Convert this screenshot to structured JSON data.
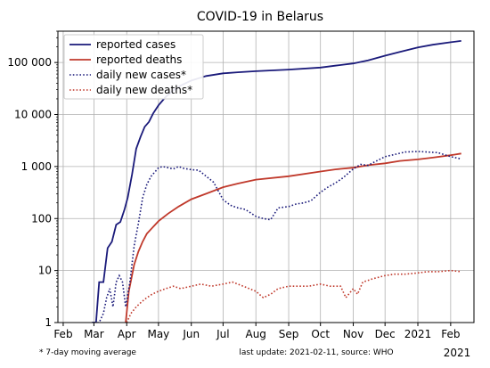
{
  "chart_data": {
    "type": "line",
    "title": "COVID-19 in Belarus",
    "xlabel": "",
    "ylabel": "",
    "yscale": "log",
    "ylim": [
      1,
      400000
    ],
    "xlim": [
      "2020-01-27",
      "2021-02-23"
    ],
    "grid": true,
    "legend_position": "top-left",
    "y_ticks": [
      1,
      10,
      100,
      1000,
      10000,
      100000
    ],
    "y_tick_labels": [
      "1",
      "10",
      "100",
      "1 000",
      "10 000",
      "100 000"
    ],
    "x_ticks": [
      "2020-02-01",
      "2020-03-01",
      "2020-04-01",
      "2020-05-01",
      "2020-06-01",
      "2020-07-01",
      "2020-08-01",
      "2020-09-01",
      "2020-10-01",
      "2020-11-01",
      "2020-12-01",
      "2021-01-01",
      "2021-02-01"
    ],
    "x_tick_labels": [
      "Feb",
      "Mar",
      "Apr",
      "May",
      "Jun",
      "Jul",
      "Aug",
      "Sep",
      "Oct",
      "Nov",
      "Dec",
      "2021",
      "Feb"
    ],
    "x_extra_label": "2021",
    "footnote_left": "* 7-day moving average",
    "footnote_right": "last update: 2021-02-11, source: WHO",
    "series": [
      {
        "name": "reported cases",
        "color": "#1a1a7a",
        "style": "solid",
        "x": [
          "2020-02-28",
          "2020-03-03",
          "2020-03-06",
          "2020-03-10",
          "2020-03-14",
          "2020-03-18",
          "2020-03-22",
          "2020-03-26",
          "2020-03-30",
          "2020-04-02",
          "2020-04-06",
          "2020-04-10",
          "2020-04-14",
          "2020-04-18",
          "2020-04-22",
          "2020-04-26",
          "2020-05-01",
          "2020-05-08",
          "2020-05-15",
          "2020-05-22",
          "2020-06-01",
          "2020-06-15",
          "2020-07-01",
          "2020-07-15",
          "2020-08-01",
          "2020-09-01",
          "2020-10-01",
          "2020-10-15",
          "2020-11-01",
          "2020-11-15",
          "2020-12-01",
          "2020-12-15",
          "2021-01-01",
          "2021-01-15",
          "2021-02-01",
          "2021-02-11"
        ],
        "y": [
          1,
          1,
          6,
          6,
          27,
          36,
          76,
          86,
          152,
          254,
          700,
          2200,
          3700,
          5800,
          7200,
          10500,
          15000,
          22000,
          29000,
          36000,
          45000,
          55000,
          62000,
          65000,
          68000,
          73000,
          80000,
          87000,
          96000,
          110000,
          135000,
          160000,
          195000,
          220000,
          245000,
          260000
        ]
      },
      {
        "name": "reported deaths",
        "color": "#c0392b",
        "style": "solid",
        "x": [
          "2020-03-31",
          "2020-04-03",
          "2020-04-08",
          "2020-04-12",
          "2020-04-16",
          "2020-04-20",
          "2020-04-25",
          "2020-05-01",
          "2020-05-10",
          "2020-05-20",
          "2020-06-01",
          "2020-06-15",
          "2020-07-01",
          "2020-07-15",
          "2020-08-01",
          "2020-09-01",
          "2020-10-01",
          "2020-10-15",
          "2020-11-01",
          "2020-11-15",
          "2020-12-01",
          "2020-12-15",
          "2021-01-01",
          "2021-01-15",
          "2021-02-01",
          "2021-02-11"
        ],
        "y": [
          1,
          4,
          13,
          23,
          36,
          51,
          66,
          89,
          124,
          170,
          235,
          300,
          400,
          470,
          560,
          650,
          800,
          880,
          950,
          1060,
          1150,
          1280,
          1370,
          1480,
          1650,
          1780
        ]
      },
      {
        "name": "daily new cases*",
        "color": "#1a1a7a",
        "style": "dotted",
        "x": [
          "2020-03-01",
          "2020-03-06",
          "2020-03-10",
          "2020-03-13",
          "2020-03-16",
          "2020-03-19",
          "2020-03-22",
          "2020-03-25",
          "2020-03-28",
          "2020-03-31",
          "2020-04-04",
          "2020-04-08",
          "2020-04-12",
          "2020-04-16",
          "2020-04-20",
          "2020-04-24",
          "2020-04-28",
          "2020-05-01",
          "2020-05-05",
          "2020-05-10",
          "2020-05-15",
          "2020-05-20",
          "2020-05-25",
          "2020-06-01",
          "2020-06-08",
          "2020-06-15",
          "2020-06-22",
          "2020-07-01",
          "2020-07-08",
          "2020-07-15",
          "2020-07-22",
          "2020-08-01",
          "2020-08-08",
          "2020-08-15",
          "2020-08-22",
          "2020-09-01",
          "2020-09-08",
          "2020-09-15",
          "2020-09-22",
          "2020-10-01",
          "2020-10-08",
          "2020-10-15",
          "2020-10-22",
          "2020-11-01",
          "2020-11-08",
          "2020-11-15",
          "2020-11-22",
          "2020-12-01",
          "2020-12-10",
          "2020-12-20",
          "2021-01-01",
          "2021-01-10",
          "2021-01-20",
          "2021-02-01",
          "2021-02-11"
        ],
        "y": [
          1,
          1,
          1.5,
          3,
          4.5,
          2,
          6,
          8,
          6,
          2,
          6,
          30,
          80,
          250,
          450,
          650,
          800,
          950,
          1000,
          950,
          900,
          1000,
          920,
          870,
          850,
          650,
          500,
          230,
          180,
          160,
          150,
          110,
          100,
          95,
          160,
          170,
          190,
          200,
          220,
          320,
          400,
          480,
          600,
          900,
          1100,
          1050,
          1250,
          1550,
          1700,
          1900,
          1950,
          1900,
          1850,
          1550,
          1400
        ]
      },
      {
        "name": "daily new deaths*",
        "color": "#c0392b",
        "style": "dotted",
        "x": [
          "2020-04-01",
          "2020-04-05",
          "2020-04-10",
          "2020-04-15",
          "2020-04-20",
          "2020-04-25",
          "2020-05-01",
          "2020-05-08",
          "2020-05-15",
          "2020-05-22",
          "2020-06-01",
          "2020-06-10",
          "2020-06-20",
          "2020-07-01",
          "2020-07-10",
          "2020-07-20",
          "2020-08-01",
          "2020-08-08",
          "2020-08-15",
          "2020-08-22",
          "2020-09-01",
          "2020-09-10",
          "2020-09-20",
          "2020-10-01",
          "2020-10-10",
          "2020-10-20",
          "2020-10-25",
          "2020-11-01",
          "2020-11-05",
          "2020-11-10",
          "2020-11-20",
          "2020-12-01",
          "2020-12-10",
          "2020-12-20",
          "2021-01-01",
          "2021-01-10",
          "2021-01-20",
          "2021-02-01",
          "2021-02-11"
        ],
        "y": [
          1,
          1.5,
          2,
          2.5,
          3,
          3.5,
          4,
          4.5,
          5,
          4.5,
          5,
          5.5,
          5,
          5.5,
          6,
          5,
          4,
          3,
          3.5,
          4.5,
          5,
          5,
          5,
          5.5,
          5,
          5,
          3,
          4.5,
          3.5,
          6,
          7,
          8,
          8.5,
          8.5,
          9,
          9.5,
          9.5,
          10,
          9.5
        ]
      }
    ]
  }
}
